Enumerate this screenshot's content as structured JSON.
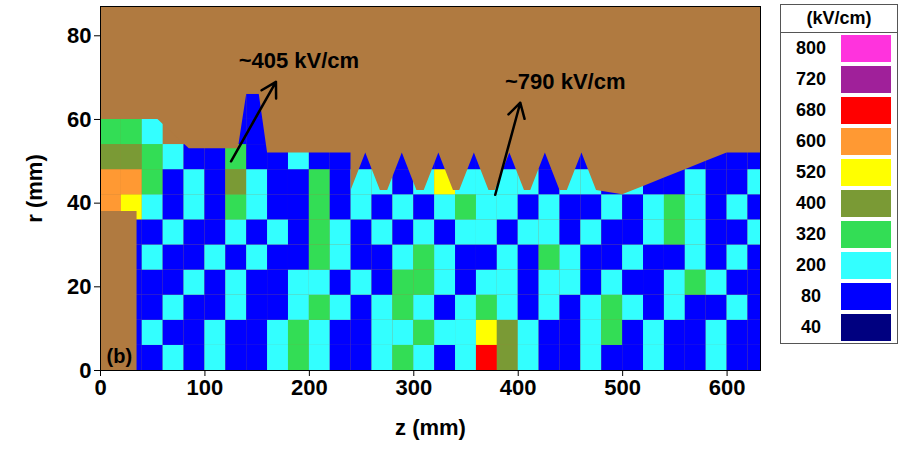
{
  "chart_data": {
    "type": "heatmap",
    "xlabel": "z (mm)",
    "ylabel": "r (mm)",
    "xlim": [
      0,
      632
    ],
    "ylim": [
      0,
      87
    ],
    "xticks": [
      0,
      100,
      200,
      300,
      400,
      500,
      600
    ],
    "yticks": [
      0,
      20,
      40,
      60,
      80
    ],
    "grid": false,
    "panel_label": "(b)",
    "annotations": [
      {
        "text": "~405 kV/cm",
        "z": 190,
        "r": 74,
        "arrow": [
          125,
          50,
          168,
          69
        ]
      },
      {
        "text": "~790 kV/cm",
        "z": 445,
        "r": 69,
        "arrow": [
          378,
          42,
          402,
          64
        ]
      }
    ],
    "cells": {
      "z_edges": [
        0,
        20,
        40,
        60,
        80,
        100,
        120,
        140,
        160,
        180,
        200,
        220,
        240,
        260,
        280,
        300,
        320,
        340,
        360,
        380,
        400,
        420,
        440,
        460,
        480,
        500,
        520,
        540,
        560,
        580,
        600,
        620,
        640
      ],
      "r_edges": [
        0,
        6,
        12,
        18,
        24,
        30,
        36,
        42,
        48,
        54,
        60,
        66
      ],
      "values": [
        [
          null,
          120,
          150,
          250,
          100,
          250,
          80,
          100,
          250,
          350,
          250,
          100,
          80,
          250,
          350,
          250,
          100,
          250,
          700,
          450,
          250,
          100,
          80,
          250,
          100,
          80,
          250,
          100,
          80,
          250,
          100,
          80
        ],
        [
          null,
          120,
          250,
          100,
          80,
          250,
          100,
          80,
          250,
          350,
          250,
          80,
          100,
          250,
          250,
          350,
          250,
          250,
          550,
          450,
          250,
          80,
          100,
          250,
          350,
          100,
          250,
          80,
          100,
          250,
          80,
          100
        ],
        [
          null,
          100,
          80,
          250,
          100,
          80,
          250,
          100,
          80,
          250,
          350,
          250,
          100,
          250,
          350,
          250,
          100,
          250,
          350,
          250,
          100,
          250,
          80,
          250,
          350,
          250,
          100,
          250,
          100,
          80,
          250,
          100
        ],
        [
          null,
          100,
          100,
          80,
          250,
          100,
          250,
          80,
          100,
          250,
          250,
          100,
          250,
          80,
          350,
          350,
          250,
          100,
          250,
          250,
          80,
          250,
          250,
          100,
          250,
          100,
          80,
          250,
          350,
          250,
          100,
          80
        ],
        [
          null,
          100,
          250,
          100,
          80,
          250,
          100,
          250,
          80,
          100,
          350,
          250,
          80,
          100,
          250,
          350,
          250,
          80,
          100,
          250,
          100,
          350,
          250,
          80,
          100,
          250,
          100,
          80,
          250,
          100,
          250,
          100
        ],
        [
          null,
          100,
          100,
          250,
          100,
          80,
          250,
          100,
          250,
          80,
          350,
          250,
          100,
          250,
          100,
          250,
          80,
          250,
          250,
          100,
          250,
          250,
          100,
          250,
          80,
          100,
          250,
          350,
          250,
          100,
          80,
          250
        ],
        [
          600,
          550,
          250,
          100,
          250,
          100,
          350,
          250,
          100,
          80,
          350,
          100,
          250,
          80,
          250,
          100,
          250,
          350,
          250,
          250,
          100,
          250,
          80,
          100,
          250,
          100,
          250,
          350,
          250,
          100,
          250,
          100
        ],
        [
          640,
          600,
          350,
          100,
          250,
          100,
          400,
          250,
          80,
          100,
          350,
          100,
          250,
          250,
          100,
          250,
          550,
          250,
          250,
          250,
          250,
          100,
          250,
          250,
          80,
          250,
          80,
          100,
          250,
          80,
          100,
          250
        ],
        [
          450,
          400,
          350,
          250,
          100,
          100,
          350,
          80,
          100,
          250,
          100,
          80,
          80,
          80,
          80,
          80,
          80,
          80,
          80,
          80,
          80,
          80,
          80,
          80,
          100,
          80,
          80,
          80,
          80,
          80,
          100,
          80
        ],
        [
          350,
          350,
          250,
          null,
          null,
          null,
          100,
          80,
          null,
          null,
          null,
          null,
          null,
          null,
          null,
          null,
          null,
          null,
          null,
          null,
          null,
          null,
          null,
          null,
          null,
          null,
          null,
          null,
          null,
          null,
          null,
          null
        ],
        [
          null,
          null,
          null,
          null,
          null,
          null,
          100,
          80,
          null,
          null,
          null,
          null,
          null,
          null,
          null,
          null,
          null,
          null,
          null,
          null,
          null,
          null,
          null,
          null,
          null,
          null,
          null,
          null,
          null,
          null,
          null,
          null
        ]
      ]
    },
    "geometry": {
      "wall": {
        "z": [
          0,
          55,
          85,
          132,
          140,
          152,
          160,
          240,
          240,
          254,
          268,
          275,
          289,
          303,
          310,
          324,
          338,
          344,
          358,
          372,
          378,
          392,
          406,
          412,
          426,
          440,
          447,
          461,
          475,
          500,
          520,
          540,
          560,
          580,
          600,
          640
        ],
        "r": [
          60,
          60,
          53,
          53,
          66,
          66,
          52,
          52,
          43,
          52,
          43,
          43,
          52,
          43,
          43,
          52,
          43,
          43,
          52,
          43,
          43,
          52,
          43,
          43,
          52,
          43,
          43,
          52,
          43,
          42,
          44,
          46,
          48,
          50,
          52,
          52
        ]
      },
      "cathode": {
        "z": [
          0,
          35
        ],
        "r": [
          0,
          38
        ]
      }
    },
    "colorbar": {
      "label": "(kV/cm)",
      "ticks": [
        800,
        720,
        680,
        600,
        520,
        400,
        320,
        200,
        80,
        40
      ],
      "colors": [
        "#ff33dd",
        "#a0209a",
        "#ff0000",
        "#ff9933",
        "#ffff00",
        "#7a9a35",
        "#33dd55",
        "#33ffff",
        "#0000ff",
        "#000080"
      ]
    }
  }
}
